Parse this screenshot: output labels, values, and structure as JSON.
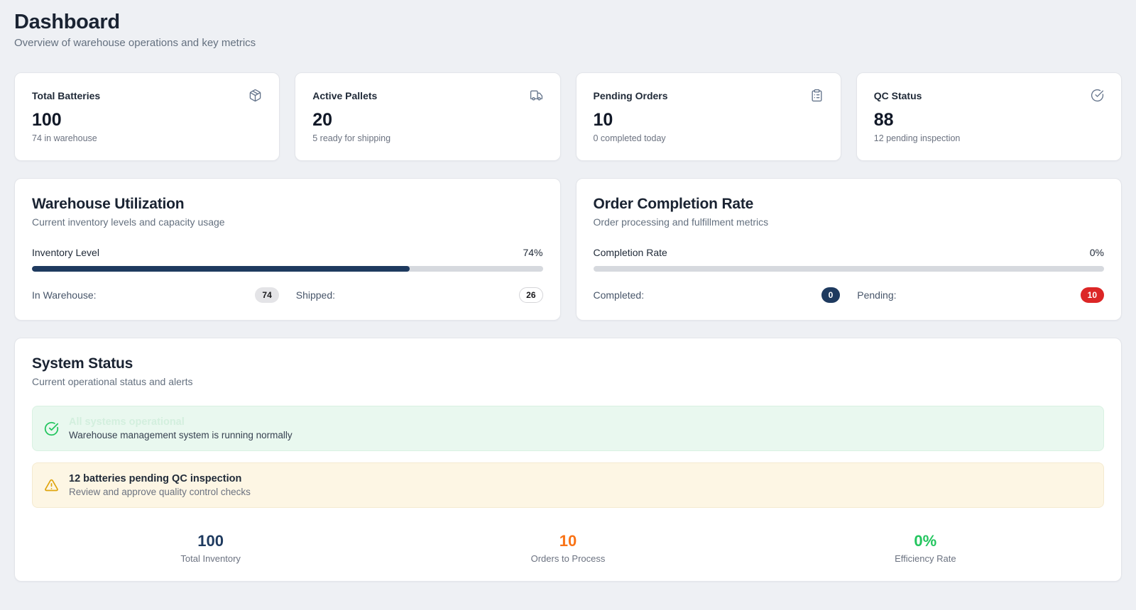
{
  "header": {
    "title": "Dashboard",
    "subtitle": "Overview of warehouse operations and key metrics"
  },
  "stat_cards": [
    {
      "label": "Total Batteries",
      "icon": "package-icon",
      "value": "100",
      "sub": "74 in warehouse"
    },
    {
      "label": "Active Pallets",
      "icon": "truck-icon",
      "value": "20",
      "sub": "5 ready for shipping"
    },
    {
      "label": "Pending Orders",
      "icon": "clipboard-list-icon",
      "value": "10",
      "sub": "0 completed today"
    },
    {
      "label": "QC Status",
      "icon": "circle-check-icon",
      "value": "88",
      "sub": "12 pending inspection"
    }
  ],
  "warehouse_utilization": {
    "title": "Warehouse Utilization",
    "subtitle": "Current inventory levels and capacity usage",
    "progress_label": "Inventory Level",
    "progress_value": "74%",
    "progress_percent": 74,
    "in_warehouse_label": "In Warehouse:",
    "in_warehouse_value": "74",
    "shipped_label": "Shipped:",
    "shipped_value": "26"
  },
  "order_completion": {
    "title": "Order Completion Rate",
    "subtitle": "Order processing and fulfillment metrics",
    "progress_label": "Completion Rate",
    "progress_value": "0%",
    "progress_percent": 0,
    "completed_label": "Completed:",
    "completed_value": "0",
    "pending_label": "Pending:",
    "pending_value": "10"
  },
  "system_status": {
    "title": "System Status",
    "subtitle": "Current operational status and alerts",
    "success_alert": {
      "title": "All systems operational",
      "description": "Warehouse management system is running normally"
    },
    "warning_alert": {
      "title": "12 batteries pending QC inspection",
      "description": "Review and approve quality control checks"
    },
    "summary_stats": [
      {
        "value": "100",
        "label": "Total Inventory",
        "color": "#1e3a5f"
      },
      {
        "value": "10",
        "label": "Orders to Process",
        "color": "#f97316"
      },
      {
        "value": "0%",
        "label": "Efficiency Rate",
        "color": "#22c55e"
      }
    ]
  },
  "colors": {
    "page_background": "#eef0f4",
    "card_background": "#ffffff",
    "navy_accent": "#1e3a5f",
    "red_badge": "#dc2626",
    "orange_stat": "#f97316",
    "green_accent": "#22c55e",
    "success_alert_background": "#e9f8ef",
    "warning_alert_background": "#fdf6e4",
    "progress_track": "#d6d9de",
    "muted_text": "#6b7280"
  }
}
